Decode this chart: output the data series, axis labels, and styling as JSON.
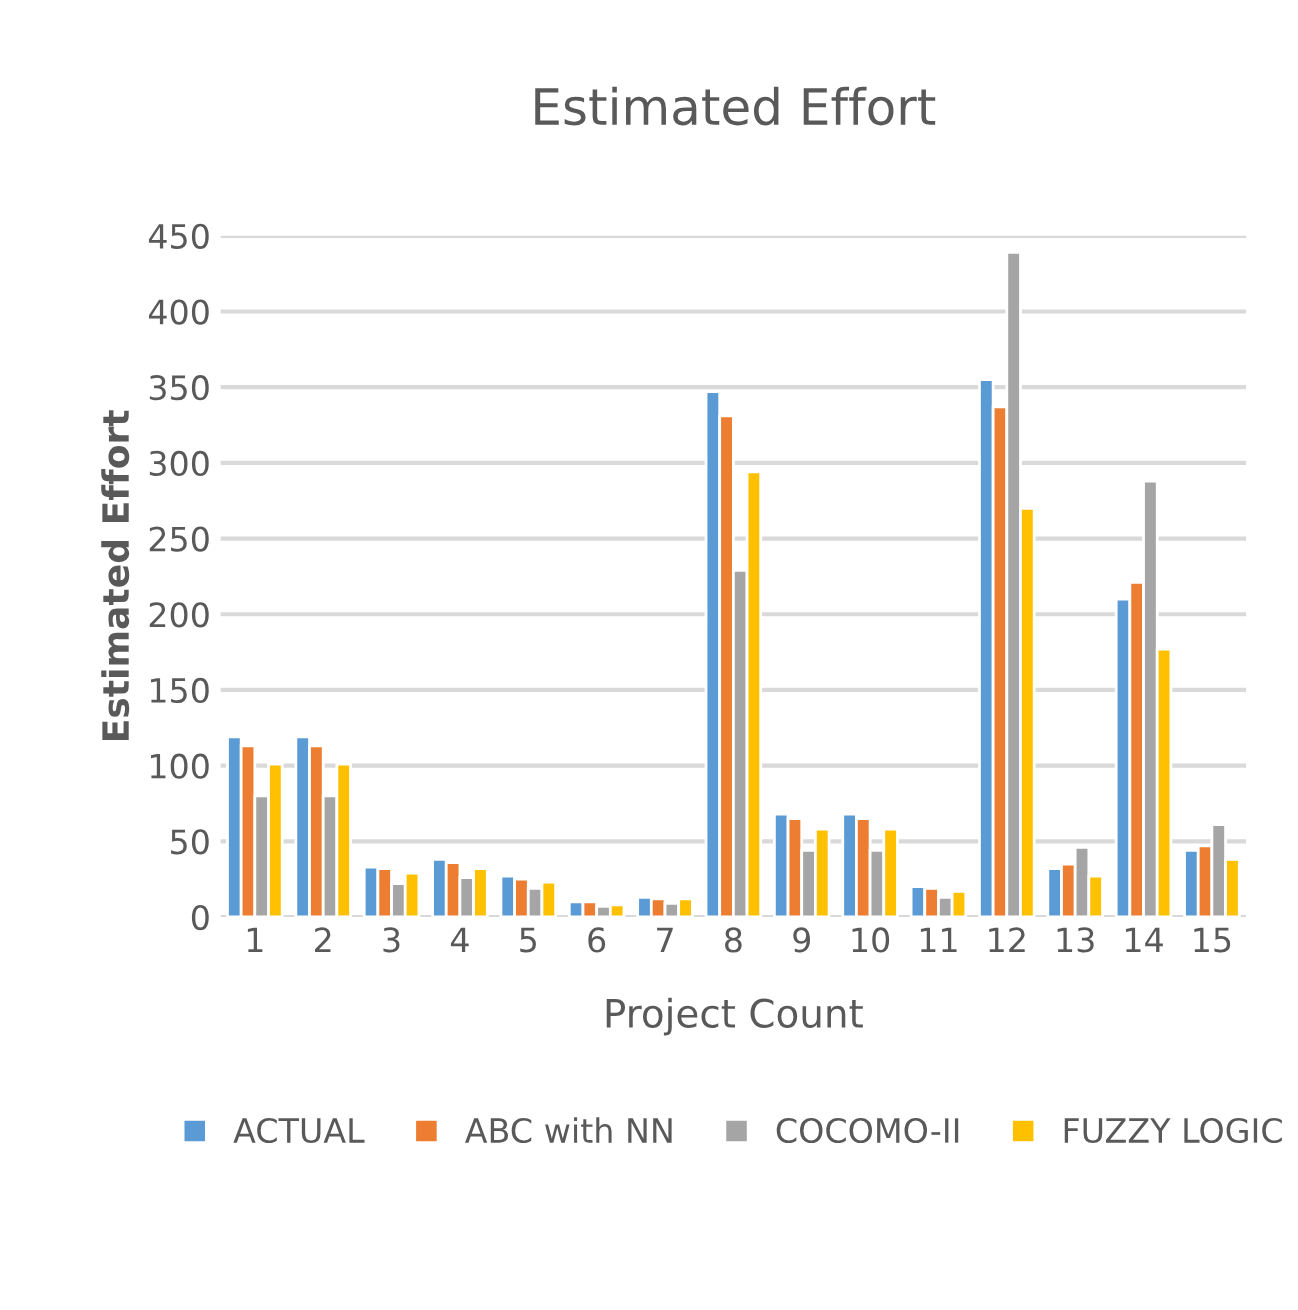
{
  "chart_data": {
    "type": "bar",
    "title": "Estimated Effort",
    "xlabel": "Project Count",
    "ylabel": "Estimated Effort",
    "categories": [
      "1",
      "2",
      "3",
      "4",
      "5",
      "6",
      "7",
      "8",
      "9",
      "10",
      "11",
      "12",
      "13",
      "14",
      "15"
    ],
    "series": [
      {
        "name": "ACTUAL",
        "color": "#5b9bd5",
        "values": [
          119,
          119,
          33,
          38,
          27,
          10,
          13,
          347,
          68,
          68,
          20,
          355,
          32,
          210,
          44
        ]
      },
      {
        "name": "ABC with NN",
        "color": "#ed7d31",
        "values": [
          113,
          113,
          32,
          36,
          25,
          10,
          12,
          331,
          65,
          65,
          19,
          337,
          35,
          221,
          47
        ]
      },
      {
        "name": "COCOMO-II",
        "color": "#a5a5a5",
        "values": [
          80,
          80,
          22,
          26,
          19,
          7,
          9,
          229,
          44,
          44,
          13,
          439,
          46,
          288,
          61
        ]
      },
      {
        "name": "FUZZY LOGIC",
        "color": "#ffc000",
        "values": [
          101,
          101,
          29,
          32,
          23,
          8,
          12,
          294,
          58,
          58,
          17,
          270,
          27,
          177,
          38
        ]
      }
    ],
    "ylim": [
      0,
      450
    ],
    "yticks": [
      0,
      50,
      100,
      150,
      200,
      250,
      300,
      350,
      400,
      450
    ],
    "grid": "y",
    "legend": "bottom"
  }
}
